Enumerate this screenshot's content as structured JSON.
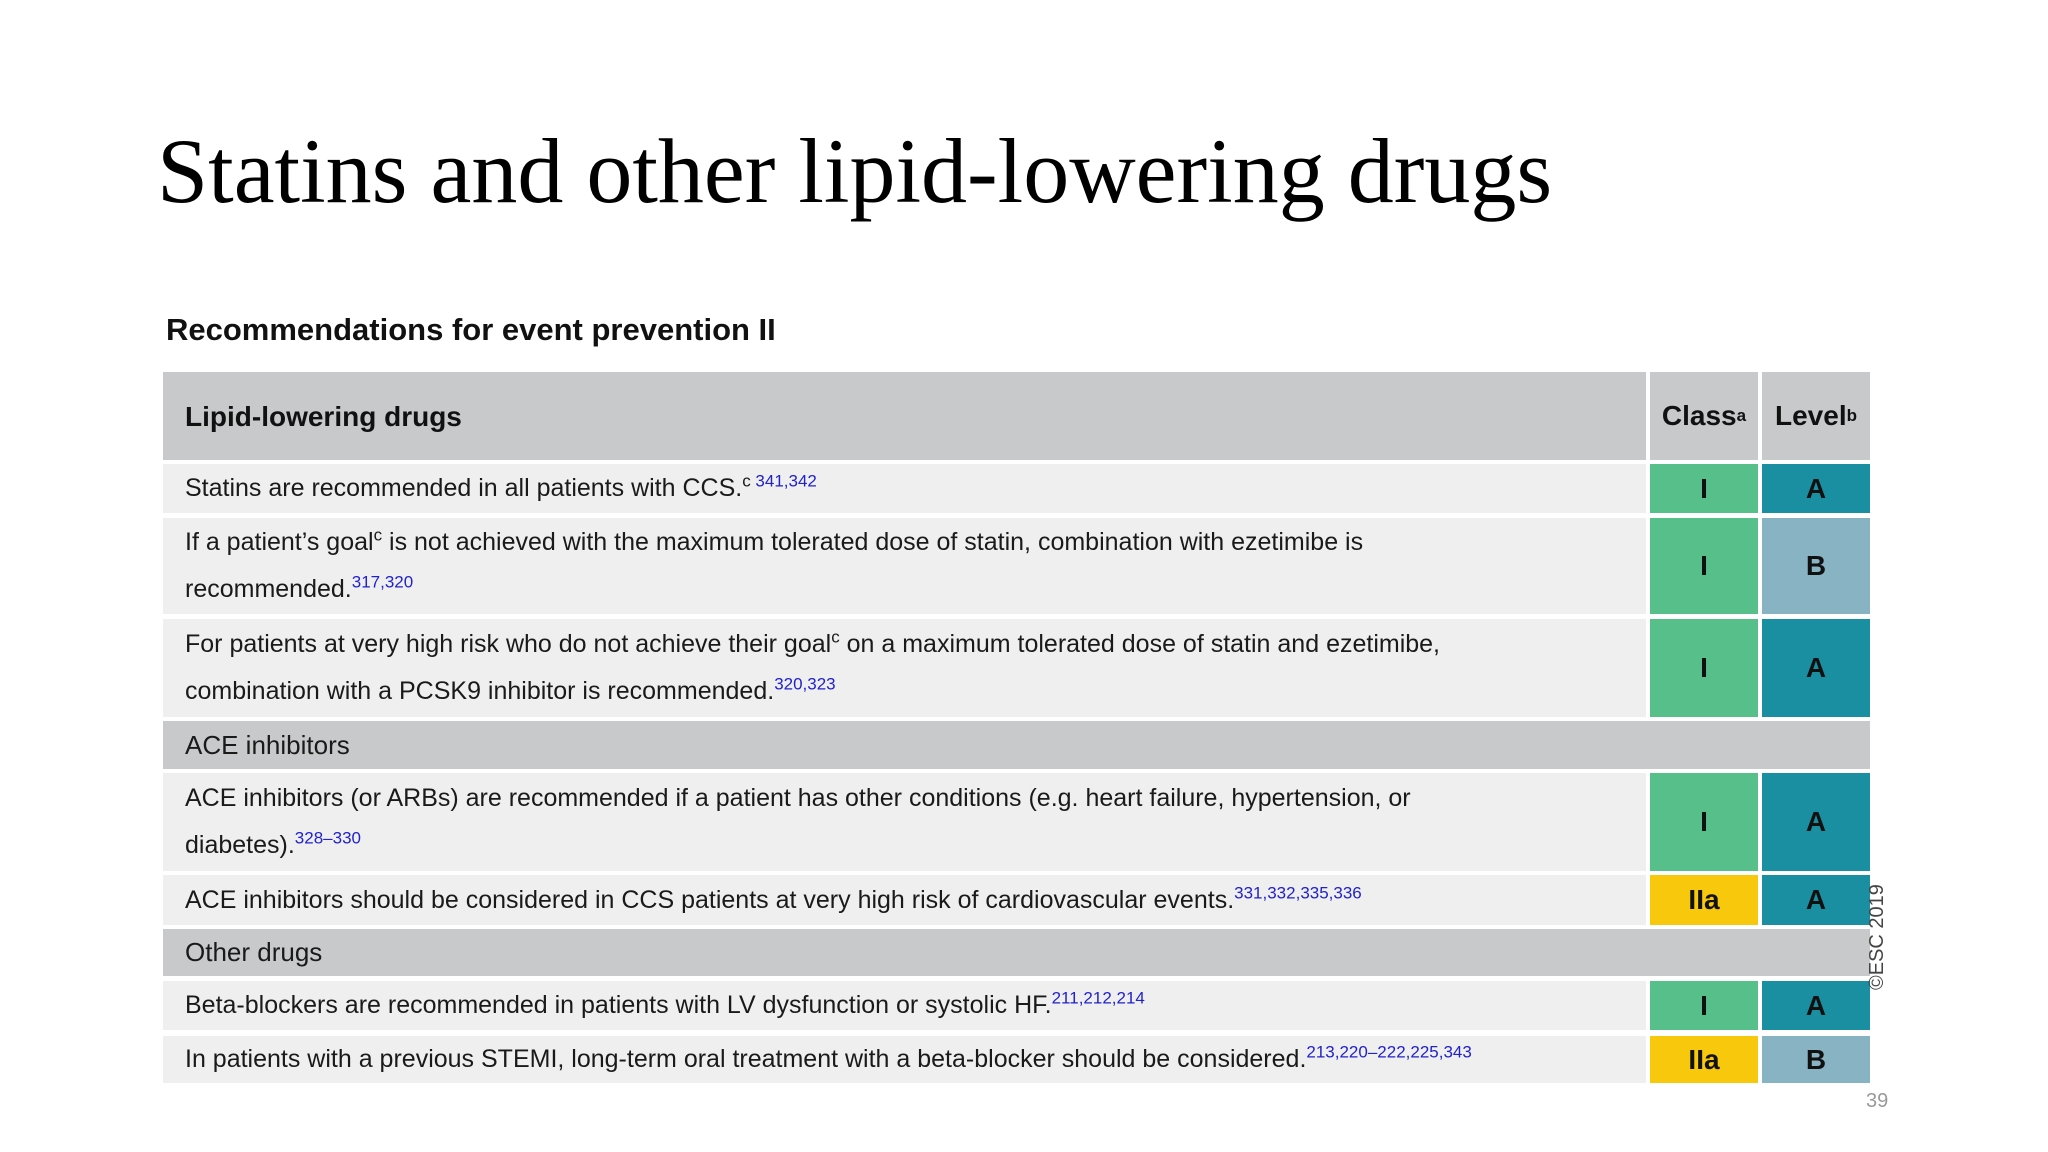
{
  "title": "Statins and other lipid-lowering drugs",
  "subtitle": "Recommendations for event prevention II",
  "header": {
    "label": "Lipid-lowering drugs",
    "class": "Class",
    "class_sup": "a",
    "level": "Level",
    "level_sup": "b"
  },
  "rows": [
    {
      "segments": [
        {
          "text": "Statins are recommended in all patients with CCS."
        },
        {
          "sup": "c"
        },
        {
          "ref": " 341,342"
        }
      ],
      "class": "I",
      "level": "A"
    },
    {
      "segments": [
        {
          "text": "If a patient’s goal"
        },
        {
          "sup": "c"
        },
        {
          "text": " is not achieved with the maximum tolerated dose of statin, combination with ezetimibe is recommended."
        },
        {
          "ref": "317,320"
        }
      ],
      "class": "I",
      "level": "B"
    },
    {
      "segments": [
        {
          "text": "For patients at very high risk who do not achieve their goal"
        },
        {
          "sup": "c"
        },
        {
          "text": " on a maximum tolerated dose of statin and ezetimibe, combination with a PCSK9 inhibitor is recommended."
        },
        {
          "ref": "320,323"
        }
      ],
      "class": "I",
      "level": "A"
    },
    {
      "section": "ACE inhibitors"
    },
    {
      "segments": [
        {
          "text": "ACE inhibitors (or ARBs) are recommended if a patient has other conditions (e.g. heart failure, hypertension, or diabetes)."
        },
        {
          "ref": "328–330"
        }
      ],
      "class": "I",
      "level": "A"
    },
    {
      "segments": [
        {
          "text": "ACE inhibitors should be considered in CCS patients at very high risk of cardiovascular events."
        },
        {
          "ref": "331,332,335,336"
        }
      ],
      "class": "IIa",
      "level": "A"
    },
    {
      "section": "Other drugs"
    },
    {
      "segments": [
        {
          "text": "Beta-blockers are recommended in patients with LV dysfunction or systolic HF."
        },
        {
          "ref": "211,212,214"
        }
      ],
      "class": "I",
      "level": "A"
    },
    {
      "segments": [
        {
          "text": "In patients with a previous STEMI, long-term oral treatment with a beta-blocker should be considered."
        },
        {
          "ref": "213,220–222,225,343"
        }
      ],
      "class": "IIa",
      "level": "B"
    }
  ],
  "copyright": "©ESC 2019",
  "page_number": "39"
}
